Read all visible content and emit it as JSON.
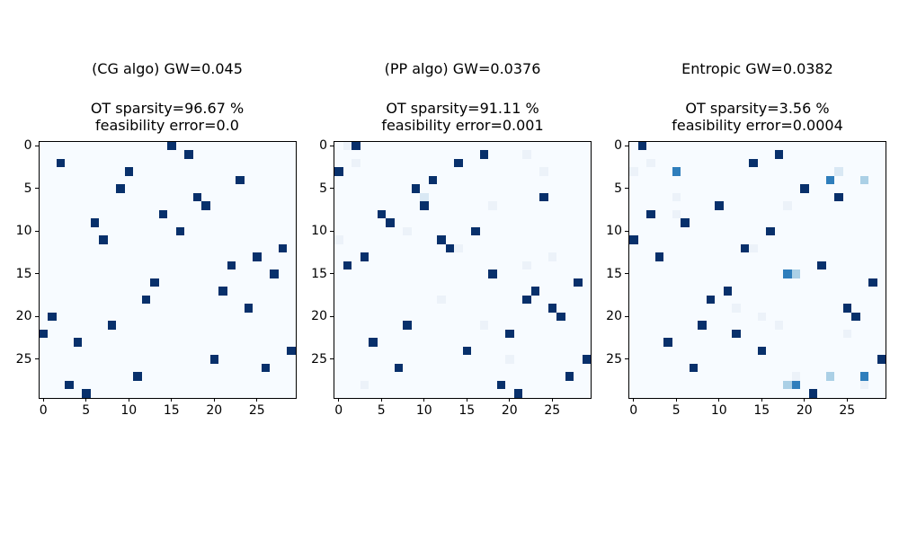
{
  "figure": {
    "background": "#ffffff"
  },
  "palette": {
    "bg": "#f7fbff",
    "d": "#08306b",
    "m": "#2f7ebc",
    "l": "#abd0e6",
    "xl": "#d9e8f4",
    "f": "#ecf2f9"
  },
  "chart_data": [
    {
      "type": "heatmap",
      "title": "(CG algo) GW=0.045",
      "subtitle_line1": "OT sparsity=96.67 %",
      "subtitle_line2": "feasibility error=0.0",
      "n_rows": 30,
      "n_cols": 30,
      "x_ticks": [
        "0",
        "5",
        "10",
        "15",
        "20",
        "25"
      ],
      "y_ticks": [
        "0",
        "5",
        "10",
        "15",
        "20",
        "25"
      ],
      "cells": [
        [
          0,
          15,
          "d"
        ],
        [
          1,
          17,
          "d"
        ],
        [
          2,
          2,
          "d"
        ],
        [
          3,
          10,
          "d"
        ],
        [
          4,
          23,
          "d"
        ],
        [
          5,
          9,
          "d"
        ],
        [
          6,
          18,
          "d"
        ],
        [
          7,
          19,
          "d"
        ],
        [
          8,
          14,
          "d"
        ],
        [
          9,
          6,
          "d"
        ],
        [
          10,
          16,
          "d"
        ],
        [
          11,
          7,
          "d"
        ],
        [
          12,
          28,
          "d"
        ],
        [
          13,
          25,
          "d"
        ],
        [
          14,
          22,
          "d"
        ],
        [
          15,
          27,
          "d"
        ],
        [
          16,
          13,
          "d"
        ],
        [
          17,
          21,
          "d"
        ],
        [
          18,
          12,
          "d"
        ],
        [
          19,
          24,
          "d"
        ],
        [
          20,
          1,
          "d"
        ],
        [
          21,
          8,
          "d"
        ],
        [
          22,
          0,
          "d"
        ],
        [
          23,
          4,
          "d"
        ],
        [
          24,
          29,
          "d"
        ],
        [
          25,
          20,
          "d"
        ],
        [
          26,
          26,
          "d"
        ],
        [
          27,
          11,
          "d"
        ],
        [
          28,
          3,
          "d"
        ],
        [
          29,
          5,
          "d"
        ]
      ]
    },
    {
      "type": "heatmap",
      "title": "(PP algo) GW=0.0376",
      "subtitle_line1": "OT sparsity=91.11 %",
      "subtitle_line2": "feasibility error=0.001",
      "n_rows": 30,
      "n_cols": 30,
      "x_ticks": [
        "0",
        "5",
        "10",
        "15",
        "20",
        "25"
      ],
      "y_ticks": [
        "0",
        "5",
        "10",
        "15",
        "20",
        "25"
      ],
      "cells": [
        [
          0,
          2,
          "d"
        ],
        [
          1,
          17,
          "d"
        ],
        [
          2,
          14,
          "d"
        ],
        [
          3,
          0,
          "d"
        ],
        [
          4,
          11,
          "d"
        ],
        [
          5,
          9,
          "d"
        ],
        [
          6,
          24,
          "d"
        ],
        [
          7,
          10,
          "d"
        ],
        [
          8,
          5,
          "d"
        ],
        [
          9,
          6,
          "d"
        ],
        [
          10,
          16,
          "d"
        ],
        [
          11,
          12,
          "d"
        ],
        [
          12,
          13,
          "d"
        ],
        [
          13,
          3,
          "d"
        ],
        [
          14,
          1,
          "d"
        ],
        [
          15,
          18,
          "d"
        ],
        [
          16,
          28,
          "d"
        ],
        [
          17,
          23,
          "d"
        ],
        [
          18,
          22,
          "d"
        ],
        [
          19,
          25,
          "d"
        ],
        [
          20,
          26,
          "d"
        ],
        [
          21,
          8,
          "d"
        ],
        [
          22,
          20,
          "d"
        ],
        [
          23,
          4,
          "d"
        ],
        [
          24,
          15,
          "d"
        ],
        [
          25,
          29,
          "d"
        ],
        [
          26,
          7,
          "d"
        ],
        [
          27,
          27,
          "d"
        ],
        [
          28,
          19,
          "d"
        ],
        [
          29,
          21,
          "d"
        ],
        [
          6,
          10,
          "xl"
        ],
        [
          0,
          1,
          "f"
        ],
        [
          1,
          22,
          "f"
        ],
        [
          2,
          2,
          "f"
        ],
        [
          3,
          24,
          "f"
        ],
        [
          7,
          18,
          "f"
        ],
        [
          10,
          8,
          "f"
        ],
        [
          11,
          0,
          "f"
        ],
        [
          12,
          14,
          "f"
        ],
        [
          13,
          25,
          "f"
        ],
        [
          14,
          22,
          "f"
        ],
        [
          18,
          12,
          "f"
        ],
        [
          21,
          17,
          "f"
        ],
        [
          25,
          20,
          "f"
        ],
        [
          28,
          3,
          "f"
        ]
      ]
    },
    {
      "type": "heatmap",
      "title": "Entropic GW=0.0382",
      "subtitle_line1": "OT sparsity=3.56 %",
      "subtitle_line2": "feasibility error=0.0004",
      "n_rows": 30,
      "n_cols": 30,
      "x_ticks": [
        "0",
        "5",
        "10",
        "15",
        "20",
        "25"
      ],
      "y_ticks": [
        "0",
        "5",
        "10",
        "15",
        "20",
        "25"
      ],
      "cells": [
        [
          0,
          1,
          "d"
        ],
        [
          1,
          17,
          "d"
        ],
        [
          2,
          14,
          "d"
        ],
        [
          5,
          20,
          "d"
        ],
        [
          6,
          24,
          "d"
        ],
        [
          7,
          10,
          "d"
        ],
        [
          8,
          2,
          "d"
        ],
        [
          9,
          6,
          "d"
        ],
        [
          10,
          16,
          "d"
        ],
        [
          11,
          0,
          "d"
        ],
        [
          12,
          13,
          "d"
        ],
        [
          13,
          3,
          "d"
        ],
        [
          14,
          22,
          "d"
        ],
        [
          16,
          28,
          "d"
        ],
        [
          17,
          11,
          "d"
        ],
        [
          18,
          9,
          "d"
        ],
        [
          19,
          25,
          "d"
        ],
        [
          20,
          26,
          "d"
        ],
        [
          21,
          8,
          "d"
        ],
        [
          22,
          12,
          "d"
        ],
        [
          23,
          4,
          "d"
        ],
        [
          24,
          15,
          "d"
        ],
        [
          25,
          29,
          "d"
        ],
        [
          26,
          7,
          "d"
        ],
        [
          29,
          21,
          "d"
        ],
        [
          3,
          5,
          "m"
        ],
        [
          4,
          23,
          "m"
        ],
        [
          15,
          18,
          "m"
        ],
        [
          27,
          27,
          "m"
        ],
        [
          28,
          19,
          "m"
        ],
        [
          4,
          27,
          "l"
        ],
        [
          15,
          19,
          "l"
        ],
        [
          27,
          23,
          "l"
        ],
        [
          28,
          18,
          "l"
        ],
        [
          3,
          24,
          "xl"
        ],
        [
          2,
          2,
          "f"
        ],
        [
          3,
          0,
          "f"
        ],
        [
          6,
          5,
          "f"
        ],
        [
          7,
          18,
          "f"
        ],
        [
          8,
          5,
          "f"
        ],
        [
          12,
          14,
          "f"
        ],
        [
          19,
          12,
          "f"
        ],
        [
          20,
          15,
          "f"
        ],
        [
          21,
          17,
          "f"
        ],
        [
          22,
          25,
          "f"
        ],
        [
          27,
          19,
          "f"
        ],
        [
          28,
          27,
          "f"
        ]
      ]
    }
  ]
}
